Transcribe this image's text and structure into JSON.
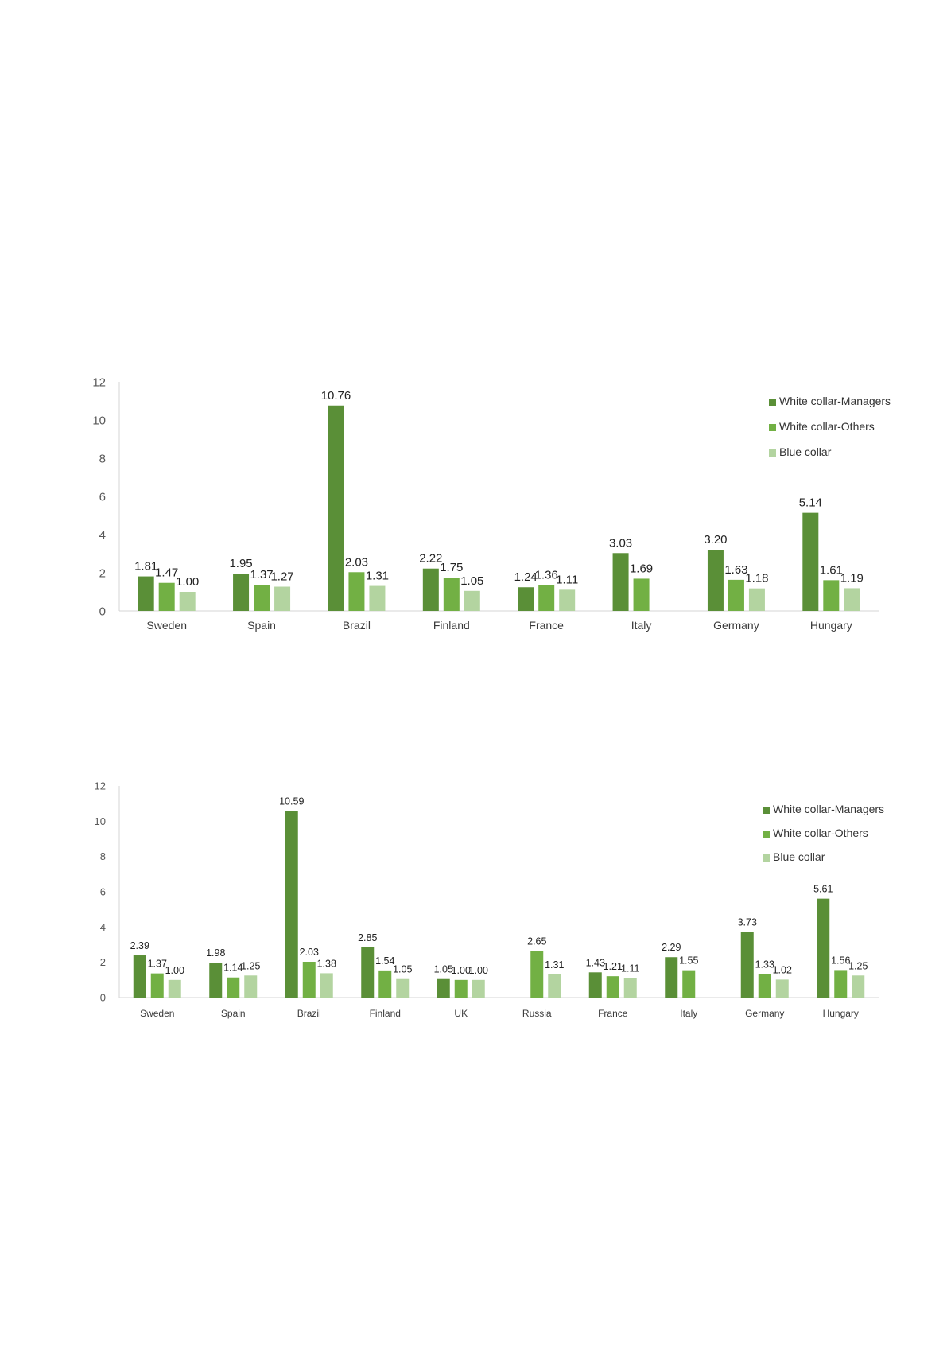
{
  "colors": {
    "white_collar_managers": "#5a8f37",
    "white_collar_others": "#72b044",
    "blue_collar": "#b3d4a0"
  },
  "chart_data": [
    {
      "type": "bar",
      "categories": [
        "Sweden",
        "Spain",
        "Brazil",
        "Finland",
        "France",
        "Italy",
        "Germany",
        "Hungary"
      ],
      "series": [
        {
          "name": "White collar-Managers",
          "values": [
            1.81,
            1.95,
            10.76,
            2.22,
            1.24,
            3.03,
            3.2,
            5.14
          ],
          "labels": [
            "1.81",
            "1.95",
            "10.76",
            "2.22",
            "1.24",
            "3.03",
            "3.20",
            "5.14"
          ]
        },
        {
          "name": "White collar-Others",
          "values": [
            1.47,
            1.37,
            2.03,
            1.75,
            1.36,
            1.69,
            1.63,
            1.61
          ],
          "labels": [
            "1.47",
            "1.37",
            "2.03",
            "1.75",
            "1.36",
            "1.69",
            "1.63",
            "1.61"
          ]
        },
        {
          "name": "Blue collar",
          "values": [
            1.0,
            1.27,
            1.31,
            1.05,
            1.11,
            null,
            1.18,
            1.19
          ],
          "labels": [
            "1.00",
            "1.27",
            "1.31",
            "1.05",
            "1.11",
            null,
            "1.18",
            "1.19"
          ]
        }
      ],
      "yticks": [
        "0",
        "2",
        "4",
        "6",
        "8",
        "10",
        "12"
      ],
      "ylim": [
        0,
        12
      ],
      "legend": "right",
      "grid": false
    },
    {
      "type": "bar",
      "categories": [
        "Sweden",
        "Spain",
        "Brazil",
        "Finland",
        "UK",
        "Russia",
        "France",
        "Italy",
        "Germany",
        "Hungary"
      ],
      "series": [
        {
          "name": "White collar-Managers",
          "values": [
            2.39,
            1.98,
            10.59,
            2.85,
            1.05,
            null,
            1.43,
            2.29,
            3.73,
            5.61
          ],
          "labels": [
            "2.39",
            "1.98",
            "10.59",
            "2.85",
            "1.05",
            null,
            "1.43",
            "2.29",
            "3.73",
            "5.61"
          ]
        },
        {
          "name": "White collar-Others",
          "values": [
            1.37,
            1.14,
            2.03,
            1.54,
            1.0,
            2.65,
            1.21,
            1.55,
            1.33,
            1.56
          ],
          "labels": [
            "1.37",
            "1.14",
            "2.03",
            "1.54",
            "1.00",
            "2.65",
            "1.21",
            "1.55",
            "1.33",
            "1.56"
          ]
        },
        {
          "name": "Blue collar",
          "values": [
            1.0,
            1.25,
            1.38,
            1.05,
            1.0,
            1.31,
            1.11,
            null,
            1.02,
            1.25
          ],
          "labels": [
            "1.00",
            "1.25",
            "1.38",
            "1.05",
            "1.00",
            "1.31",
            "1.11",
            null,
            "1.02",
            "1.25"
          ]
        }
      ],
      "yticks": [
        "0",
        "2",
        "4",
        "6",
        "8",
        "10",
        "12"
      ],
      "ylim": [
        0,
        12
      ],
      "legend": "right",
      "grid": false
    }
  ]
}
